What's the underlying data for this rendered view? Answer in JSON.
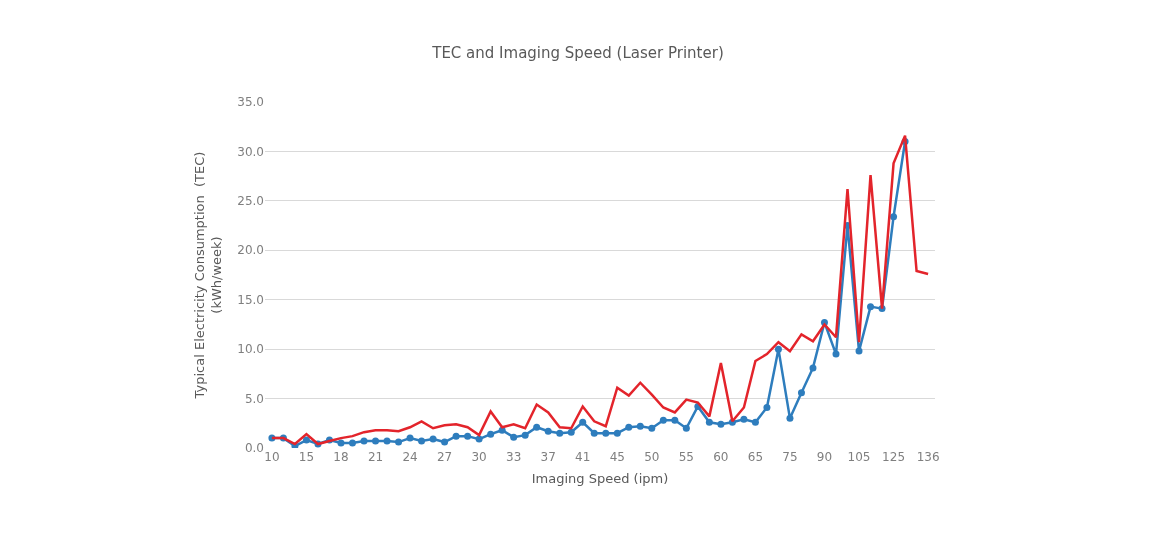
{
  "chart_data": {
    "type": "line",
    "title": "TEC and Imaging Speed (Laser Printer)",
    "xlabel": "Imaging Speed (ipm)",
    "ylabel": "Typical Electricity Consumption  (TEC)\n(kWh/week)",
    "categories": [
      "10",
      null,
      null,
      "15",
      null,
      null,
      "18",
      null,
      null,
      "21",
      null,
      null,
      "24",
      null,
      null,
      "27",
      null,
      null,
      "30",
      null,
      null,
      "33",
      null,
      null,
      "37",
      null,
      null,
      "41",
      null,
      null,
      "45",
      null,
      null,
      "50",
      null,
      null,
      "55",
      null,
      null,
      "60",
      null,
      null,
      "65",
      null,
      null,
      "75",
      null,
      null,
      "90",
      null,
      null,
      "105",
      null,
      null,
      "125",
      null,
      null,
      "136"
    ],
    "series": [
      {
        "color": "#2e7dbd",
        "marker": "circle",
        "values": [
          1.0,
          1.0,
          0.2,
          0.8,
          0.4,
          0.8,
          0.5,
          0.5,
          0.7,
          0.7,
          0.7,
          0.6,
          1.0,
          0.7,
          0.9,
          0.6,
          1.2,
          1.2,
          0.9,
          1.4,
          1.8,
          1.1,
          1.3,
          2.1,
          1.7,
          1.5,
          1.6,
          2.6,
          1.5,
          1.5,
          1.5,
          2.1,
          2.2,
          2.0,
          2.8,
          2.8,
          2.0,
          4.2,
          2.6,
          2.4,
          2.6,
          2.9,
          2.6,
          4.1,
          10.0,
          3.0,
          5.6,
          8.1,
          12.7,
          9.5,
          22.5,
          9.8,
          14.3,
          14.1,
          23.4,
          31.0,
          null,
          null
        ]
      },
      {
        "color": "#e3242b",
        "marker": "none",
        "values": [
          1.0,
          1.0,
          0.4,
          1.4,
          0.4,
          0.7,
          1.0,
          1.2,
          1.6,
          1.8,
          1.8,
          1.7,
          2.1,
          2.7,
          2.0,
          2.3,
          2.4,
          2.1,
          1.3,
          3.7,
          2.1,
          2.4,
          2.0,
          4.4,
          3.6,
          2.1,
          2.0,
          4.2,
          2.7,
          2.2,
          6.1,
          5.3,
          6.6,
          5.4,
          4.1,
          3.6,
          4.9,
          4.6,
          3.2,
          8.6,
          2.7,
          4.1,
          8.8,
          9.5,
          10.7,
          9.8,
          11.5,
          10.8,
          12.5,
          11.2,
          26.2,
          10.7,
          27.6,
          14.1,
          28.8,
          31.6,
          17.9,
          17.6
        ]
      }
    ],
    "ylim": [
      0,
      35
    ],
    "yticks": [
      {
        "value": 0,
        "label": "0.0"
      },
      {
        "value": 5,
        "label": "5.0"
      },
      {
        "value": 10,
        "label": "10.0"
      },
      {
        "value": 15,
        "label": "15.0"
      },
      {
        "value": 20,
        "label": "20.0"
      },
      {
        "value": 25,
        "label": "25.0"
      },
      {
        "value": 30,
        "label": "30.0"
      },
      {
        "value": 35,
        "label": "35.0"
      }
    ],
    "grid": "y",
    "line_style": "solid"
  }
}
